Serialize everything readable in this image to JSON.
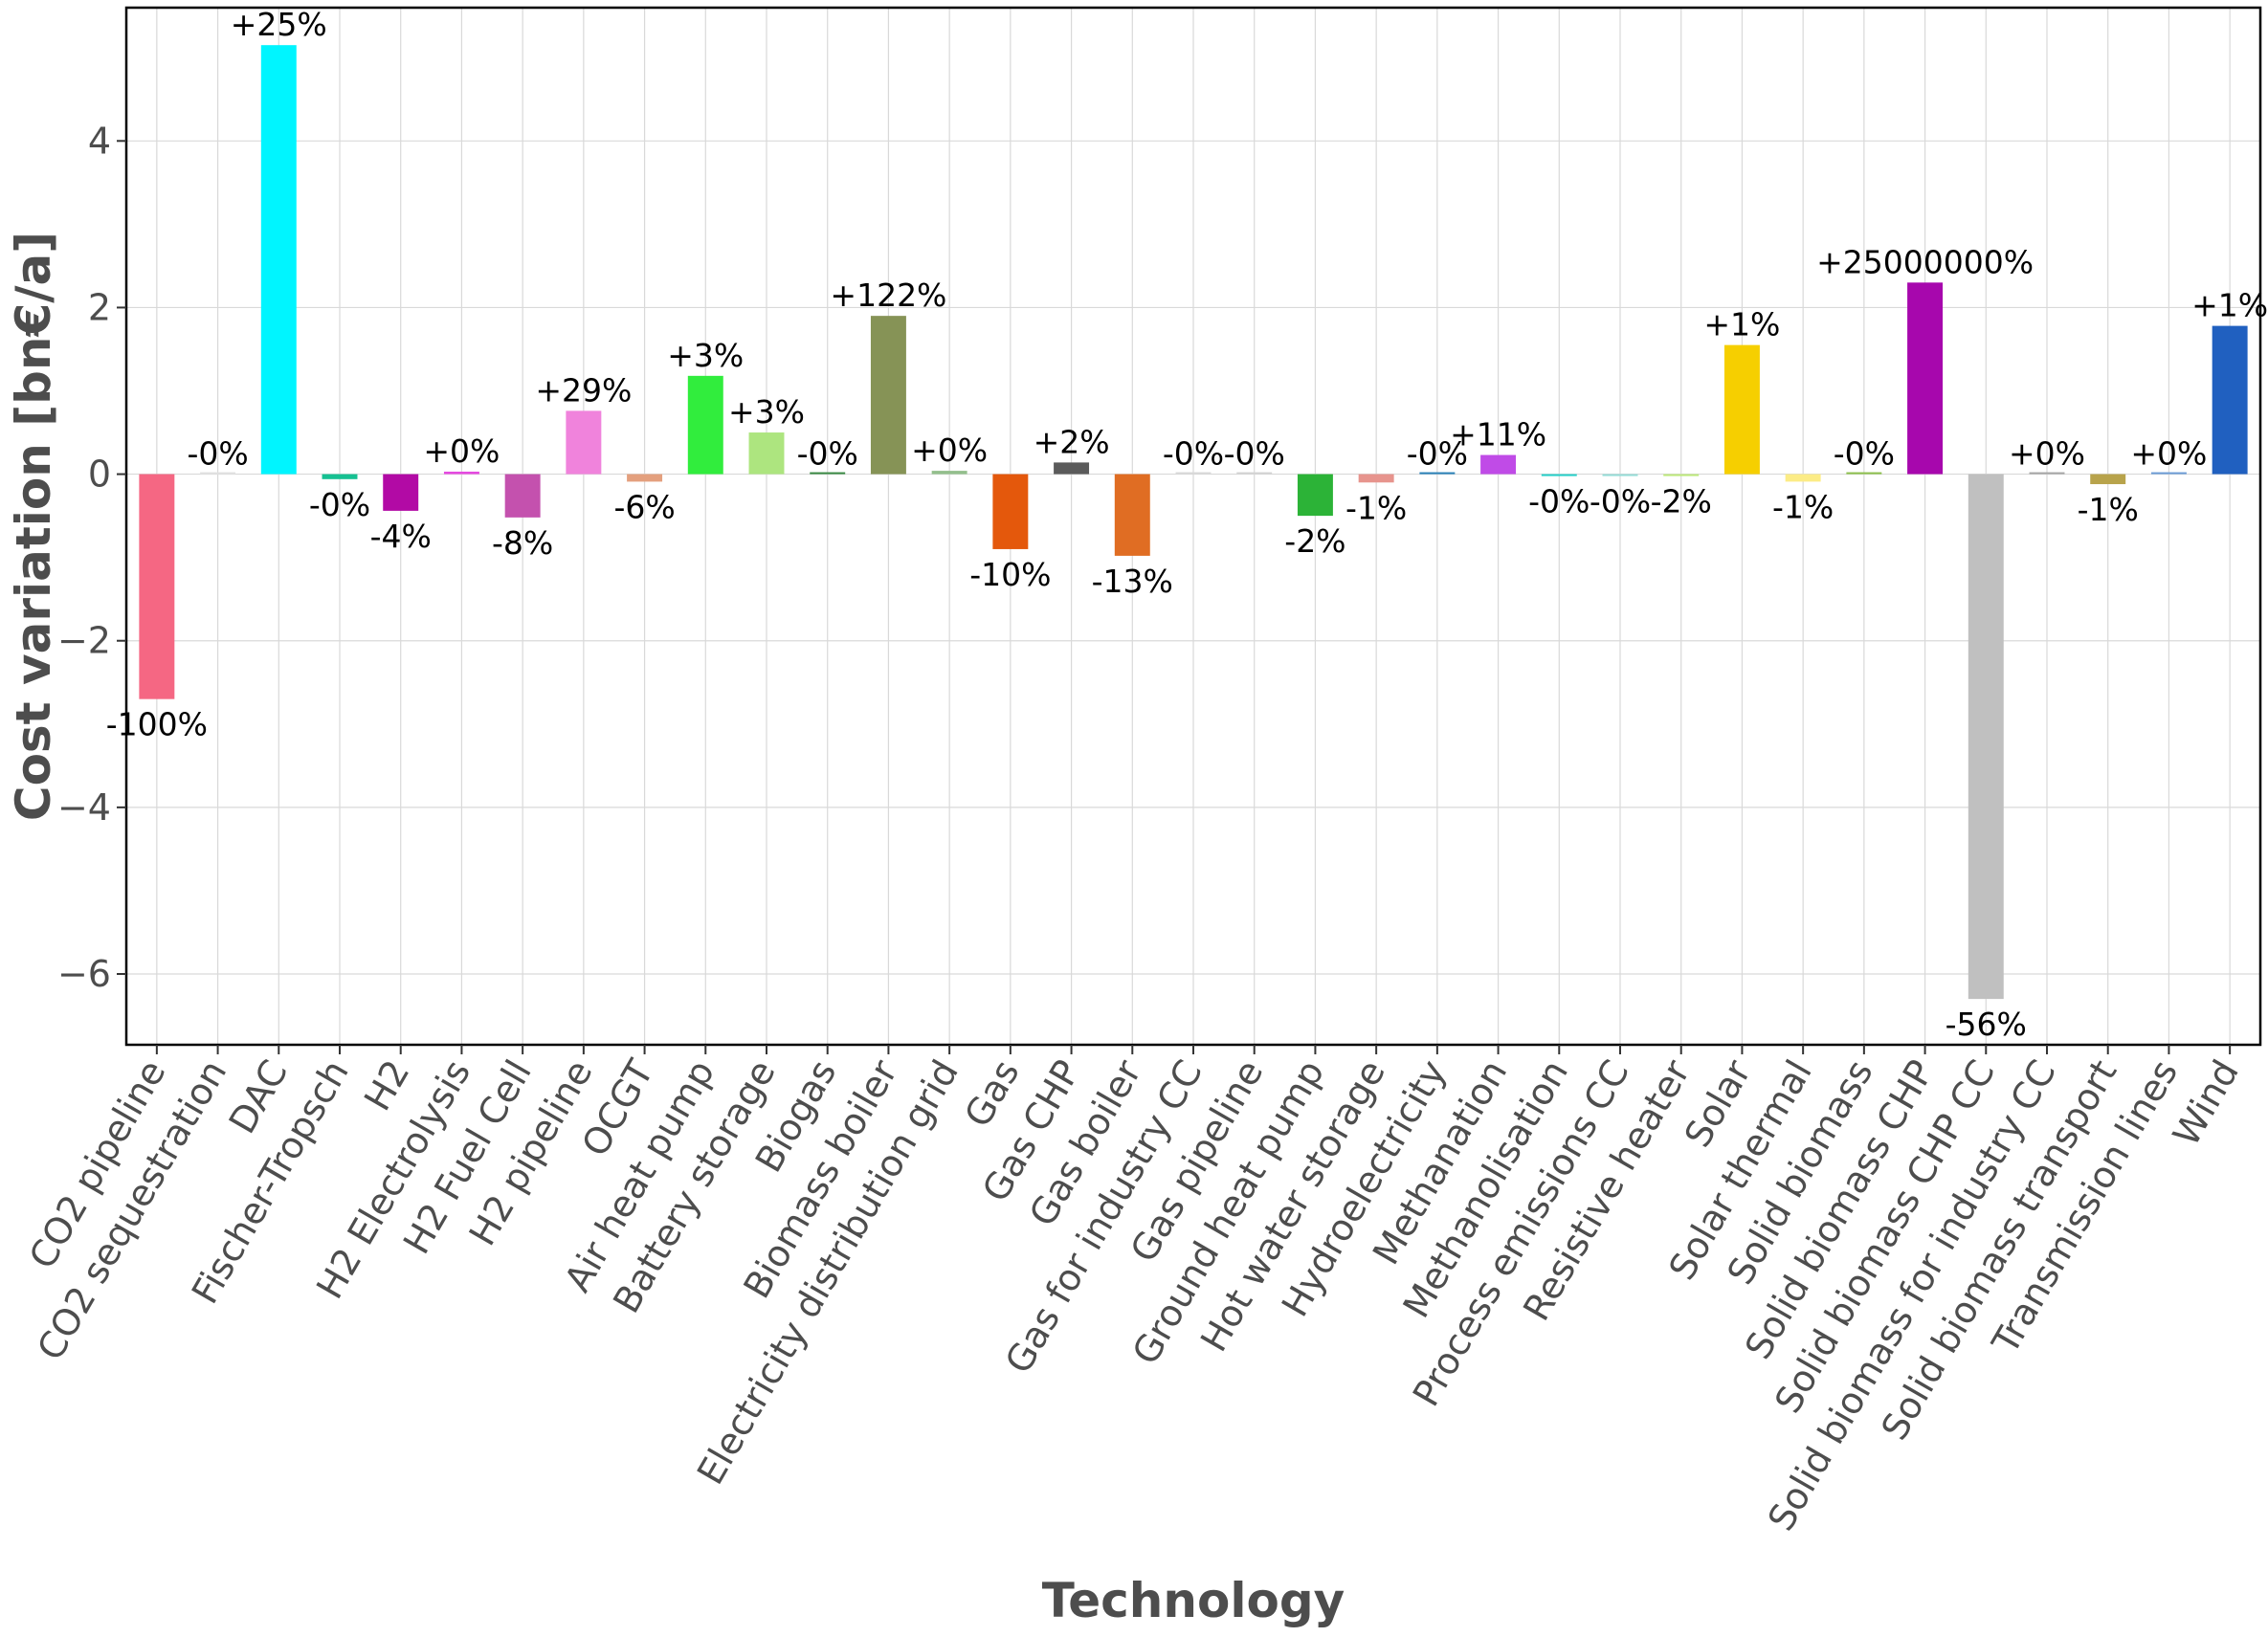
{
  "chart_data": {
    "type": "bar",
    "title": "",
    "xlabel": "Technology",
    "ylabel": "Cost variation [bn€/a]",
    "ylim": [
      -6.85,
      5.6
    ],
    "yticks": [
      -6,
      -4,
      -2,
      0,
      2,
      4
    ],
    "ytick_labels": [
      "−6",
      "−4",
      "−2",
      "0",
      "2",
      "4"
    ],
    "grid": true,
    "categories": [
      "CO2 pipeline",
      "CO2 sequestration",
      "DAC",
      "Fischer-Tropsch",
      "H2",
      "H2 Electrolysis",
      "H2 Fuel Cell",
      "H2 pipeline",
      "OCGT",
      "Air heat pump",
      "Battery storage",
      "Biogas",
      "Biomass boiler",
      "Electricity distribution grid",
      "Gas",
      "Gas CHP",
      "Gas boiler",
      "Gas for industry CC",
      "Gas pipeline",
      "Ground heat pump",
      "Hot water storage",
      "Hydroelectricity",
      "Methanation",
      "Methanolisation",
      "Process emissions CC",
      "Resistive heater",
      "Solar",
      "Solar thermal",
      "Solid biomass",
      "Solid biomass CHP",
      "Solid biomass CHP CC",
      "Solid biomass for industry CC",
      "Solid biomass transport",
      "Transmission lines",
      "Wind"
    ],
    "values": [
      -2.7,
      0.0,
      5.15,
      -0.06,
      -0.44,
      0.03,
      -0.52,
      0.76,
      -0.09,
      1.18,
      0.5,
      0.0,
      1.9,
      0.04,
      -0.9,
      0.14,
      -0.98,
      0.0,
      0.0,
      -0.5,
      -0.1,
      0.0,
      0.23,
      -0.02,
      -0.02,
      -0.02,
      1.55,
      -0.09,
      0.0,
      2.3,
      -6.3,
      0.0,
      -0.12,
      0.0,
      1.78
    ],
    "labels": [
      "-100%",
      "-0%",
      "+25%",
      "-0%",
      "-4%",
      "+0%",
      "-8%",
      "+29%",
      "-6%",
      "+3%",
      "+3%",
      "-0%",
      "+122%",
      "+0%",
      "-10%",
      "+2%",
      "-13%",
      "-0%",
      "-0%",
      "-2%",
      "-1%",
      "-0%",
      "+11%",
      "-0%",
      "-0%",
      "-2%",
      "+1%",
      "-1%",
      "-0%",
      "+25000000%",
      "-56%",
      "+0%",
      "-1%",
      "+0%",
      "+1%"
    ],
    "colors": [
      "#f56783",
      "#e1e1e1",
      "#00f5ff",
      "#16c192",
      "#b20aa5",
      "#e54ae0",
      "#c451ae",
      "#f083dc",
      "#e4a07e",
      "#31ed3d",
      "#ade57f",
      "#3b8a45",
      "#869356",
      "#93bf8c",
      "#e4580c",
      "#5b5b5b",
      "#e06d23",
      "#d8d8d8",
      "#d3d3d3",
      "#2cb337",
      "#e7948d",
      "#2a82b8",
      "#c04be7",
      "#25cfc8",
      "#96ddd8",
      "#bde97a",
      "#f6cf00",
      "#fcec86",
      "#8dc04c",
      "#a707ad",
      "#c0c0c0",
      "#a6a6a6",
      "#b8a34b",
      "#6c9cd6",
      "#2060c0"
    ]
  }
}
